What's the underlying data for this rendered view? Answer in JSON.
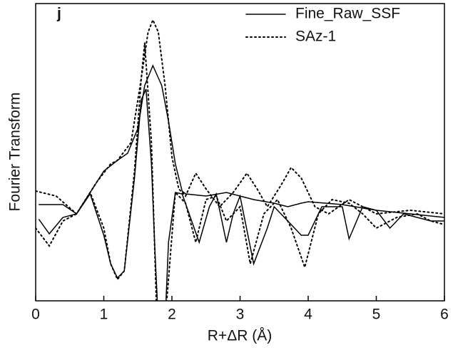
{
  "chart_data": {
    "type": "line",
    "annotation": "j",
    "xlabel": "R+ΔR (Å)",
    "ylabel": "Fourier Transform",
    "xlim": [
      0,
      6
    ],
    "xticks": [
      0,
      1,
      2,
      3,
      4,
      5,
      6
    ],
    "ylim": [
      0,
      417
    ],
    "series": [
      {
        "name": "Fine_Raw_SSF",
        "color": "#000000",
        "dash": "solid",
        "magnitude": {
          "x": [
            0.05,
            0.4,
            0.6,
            0.8,
            1.0,
            1.2,
            1.35,
            1.5,
            1.6,
            1.72,
            1.85,
            1.95,
            2.05,
            2.15,
            2.2,
            2.5,
            2.8,
            3.0,
            3.2,
            3.5,
            3.7,
            3.9,
            4.0,
            4.5,
            5.0,
            5.5,
            6.0
          ],
          "values": [
            135,
            135,
            122,
            152,
            182,
            197,
            207,
            242,
            302,
            330,
            302,
            252,
            192,
            154,
            150,
            147,
            152,
            147,
            142,
            137,
            132,
            137,
            139,
            135,
            127,
            122,
            117
          ]
        },
        "imaginary": {
          "x": [
            0.05,
            0.2,
            0.4,
            0.6,
            0.8,
            1.0,
            1.1,
            1.2,
            1.3,
            1.45,
            1.55,
            1.62,
            1.7,
            1.75,
            1.8,
            1.9,
            1.95,
            2.05,
            2.15,
            2.4,
            2.55,
            2.65,
            2.8,
            2.9,
            3.0,
            3.2,
            3.4,
            3.5,
            3.7,
            3.9,
            4.0,
            4.2,
            4.5,
            4.6,
            4.8,
            5.0,
            5.2,
            5.4,
            5.6,
            5.8,
            6.0
          ],
          "values": [
            114,
            94,
            117,
            122,
            150,
            92,
            52,
            32,
            42,
            172,
            282,
            297,
            192,
            72,
            -30,
            -30,
            82,
            152,
            150,
            82,
            132,
            150,
            82,
            122,
            147,
            52,
            102,
            132,
            112,
            92,
            92,
            132,
            132,
            87,
            132,
            127,
            102,
            122,
            117,
            112,
            112
          ]
        }
      },
      {
        "name": "SAz-1",
        "color": "#000000",
        "dash": "dotted",
        "magnitude": {
          "x": [
            0,
            0.3,
            0.6,
            0.7,
            0.9,
            1.1,
            1.2,
            1.4,
            1.55,
            1.65,
            1.72,
            1.8,
            1.9,
            2.0,
            2.1,
            2.2,
            2.35,
            2.5,
            2.7,
            2.9,
            3.1,
            3.25,
            3.4,
            3.6,
            3.75,
            3.9,
            4.1,
            4.3,
            4.6,
            4.8,
            5.0,
            5.5,
            6.0
          ],
          "values": [
            154,
            147,
            122,
            137,
            167,
            192,
            197,
            222,
            312,
            377,
            394,
            377,
            302,
            202,
            157,
            147,
            179,
            157,
            132,
            152,
            179,
            157,
            132,
            162,
            187,
            172,
            132,
            122,
            142,
            132,
            122,
            127,
            122
          ]
        },
        "imaginary": {
          "x": [
            0,
            0.2,
            0.4,
            0.6,
            0.8,
            1.0,
            1.1,
            1.2,
            1.3,
            1.45,
            1.55,
            1.6,
            1.7,
            1.78,
            1.9,
            2.05,
            2.2,
            2.35,
            2.5,
            2.65,
            2.8,
            3.0,
            3.15,
            3.35,
            3.55,
            3.75,
            3.95,
            4.15,
            4.35,
            4.6,
            4.8,
            5.0,
            5.3,
            5.6,
            5.8,
            6.0
          ],
          "values": [
            102,
            77,
            112,
            122,
            152,
            102,
            52,
            30,
            42,
            182,
            312,
            362,
            222,
            -30,
            -30,
            152,
            137,
            82,
            142,
            147,
            112,
            132,
            52,
            122,
            142,
            102,
            47,
            122,
            142,
            137,
            122,
            102,
            117,
            122,
            112,
            107
          ]
        }
      }
    ]
  }
}
